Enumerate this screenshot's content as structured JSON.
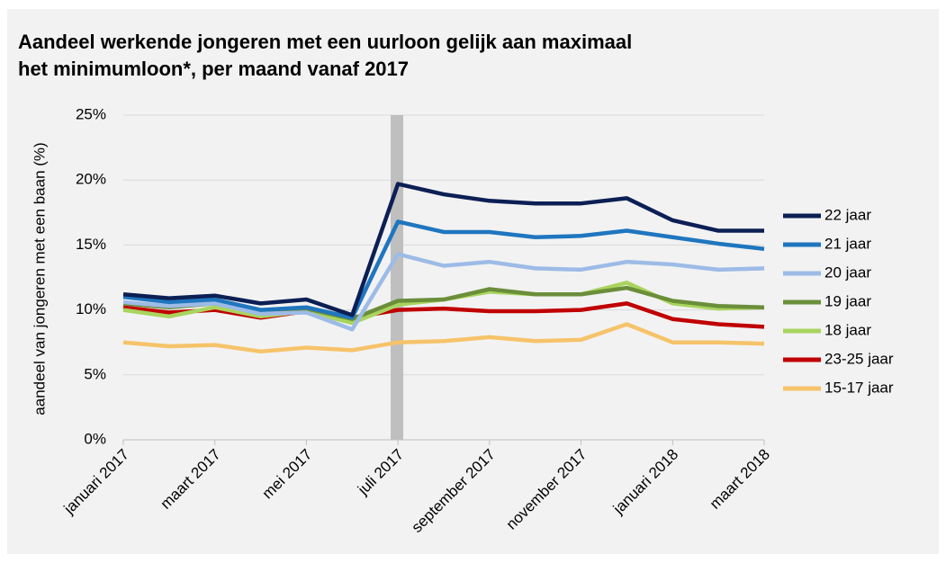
{
  "chart_data": {
    "type": "line",
    "title": [
      "Aandeel werkende jongeren met een uurloon gelijk aan maximaal",
      "het minimumloon*, per maand vanaf 2017"
    ],
    "ylabel": "aandeel van jongeren met een baan (%)",
    "categories": [
      "januari 2017",
      null,
      "maart 2017",
      null,
      "mei 2017",
      null,
      "juli 2017",
      null,
      "september 2017",
      null,
      "november 2017",
      null,
      "januari 2018",
      null,
      "maart 2018"
    ],
    "series": [
      {
        "name": "22 jaar",
        "color": "#0c1f55",
        "values": [
          11.2,
          10.9,
          11.1,
          10.5,
          10.8,
          9.6,
          19.7,
          18.9,
          18.4,
          18.2,
          18.2,
          18.6,
          16.9,
          16.1,
          16.1
        ]
      },
      {
        "name": "21 jaar",
        "color": "#1f76bf",
        "values": [
          11.0,
          10.6,
          10.8,
          10.0,
          10.2,
          9.4,
          16.8,
          16.0,
          16.0,
          15.6,
          15.7,
          16.1,
          15.6,
          15.1,
          14.7
        ]
      },
      {
        "name": "20 jaar",
        "color": "#9dbbe6",
        "values": [
          10.6,
          10.3,
          10.5,
          9.7,
          9.8,
          8.5,
          14.3,
          13.4,
          13.7,
          13.2,
          13.1,
          13.7,
          13.5,
          13.1,
          13.2
        ]
      },
      {
        "name": "19 jaar",
        "color": "#6b8e3a",
        "values": [
          10.5,
          10.2,
          10.5,
          9.8,
          10.1,
          9.3,
          10.7,
          10.8,
          11.6,
          11.2,
          11.2,
          11.7,
          10.7,
          10.3,
          10.2
        ]
      },
      {
        "name": "18 jaar",
        "color": "#a9d45e",
        "values": [
          10.0,
          9.5,
          10.2,
          9.5,
          9.9,
          9.0,
          10.4,
          10.8,
          11.4,
          11.2,
          11.2,
          12.1,
          10.5,
          10.1,
          10.2
        ]
      },
      {
        "name": "23-25 jaar",
        "color": "#c00000",
        "values": [
          10.2,
          9.8,
          10.0,
          9.4,
          9.9,
          9.4,
          10.0,
          10.1,
          9.9,
          9.9,
          10.0,
          10.5,
          9.3,
          8.9,
          8.7
        ]
      },
      {
        "name": "15-17 jaar",
        "color": "#f6c36a",
        "values": [
          7.5,
          7.2,
          7.3,
          6.8,
          7.1,
          6.9,
          7.5,
          7.6,
          7.9,
          7.6,
          7.7,
          8.9,
          7.5,
          7.5,
          7.4
        ]
      }
    ],
    "ylim": [
      0,
      25
    ],
    "yticks": [
      {
        "value": 0,
        "label": "0%"
      },
      {
        "value": 5,
        "label": "5%"
      },
      {
        "value": 10,
        "label": "10%"
      },
      {
        "value": 15,
        "label": "15%"
      },
      {
        "value": 20,
        "label": "20%"
      },
      {
        "value": 25,
        "label": "25%"
      }
    ],
    "grid": true,
    "legend": "right"
  }
}
